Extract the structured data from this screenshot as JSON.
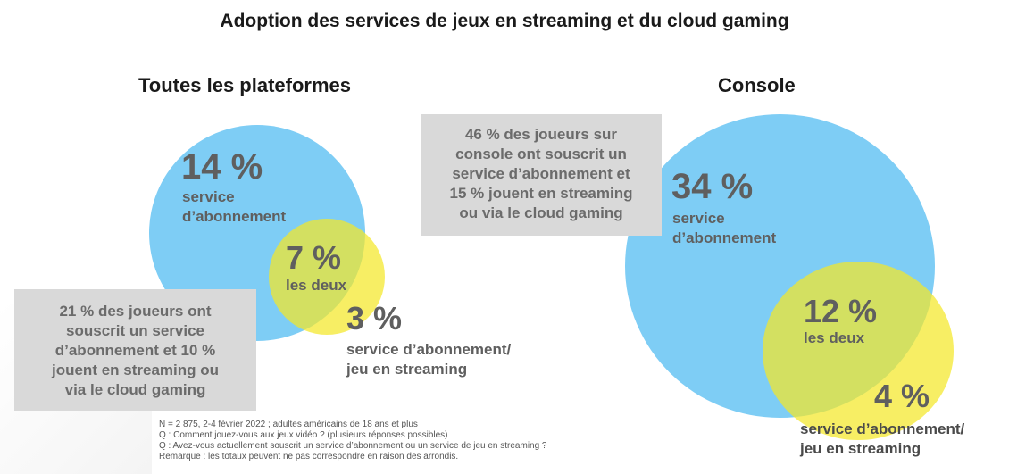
{
  "title": "Adoption des services de jeux en streaming et du cloud gaming",
  "left": {
    "heading": "Toutes les plateformes",
    "subscription": {
      "value": "14 %",
      "label_line1": "service",
      "label_line2": "d’abonnement"
    },
    "both": {
      "value": "7 %",
      "label": "les deux"
    },
    "streaming": {
      "value": "3 %",
      "label_line1": "service d’abonnement/",
      "label_line2": "jeu en streaming"
    },
    "note": {
      "line1": "21 % des joueurs ont",
      "line2": "souscrit un service",
      "line3": "d’abonnement et 10 %",
      "line4": "jouent en streaming ou",
      "line5": "via le cloud gaming"
    }
  },
  "right": {
    "heading": "Console",
    "subscription": {
      "value": "34 %",
      "label_line1": "service",
      "label_line2": "d’abonnement"
    },
    "both": {
      "value": "12 %",
      "label": "les deux"
    },
    "streaming": {
      "value": "4 %",
      "label_line1": "service d’abonnement/",
      "label_line2": "jeu en streaming"
    },
    "note": {
      "line1": "46 % des joueurs sur",
      "line2": "console ont souscrit un",
      "line3": "service d’abonnement et",
      "line4": "15 % jouent en streaming",
      "line5": "ou via le cloud gaming"
    }
  },
  "footnotes": {
    "line1": "N = 2 875, 2-4 février 2022 ; adultes américains de 18 ans et plus",
    "line2": "Q : Comment jouez-vous aux jeux vidéo ? (plusieurs réponses possibles)",
    "line3": "Q : Avez-vous actuellement souscrit un service d’abonnement ou un service de jeu en streaming ?",
    "line4": "Remarque : les totaux peuvent ne pas correspondre en raison des arrondis."
  },
  "colors": {
    "subscription": "#7ecdf5",
    "streaming": "#f4e828",
    "note_bg": "#d9d9d9"
  }
}
